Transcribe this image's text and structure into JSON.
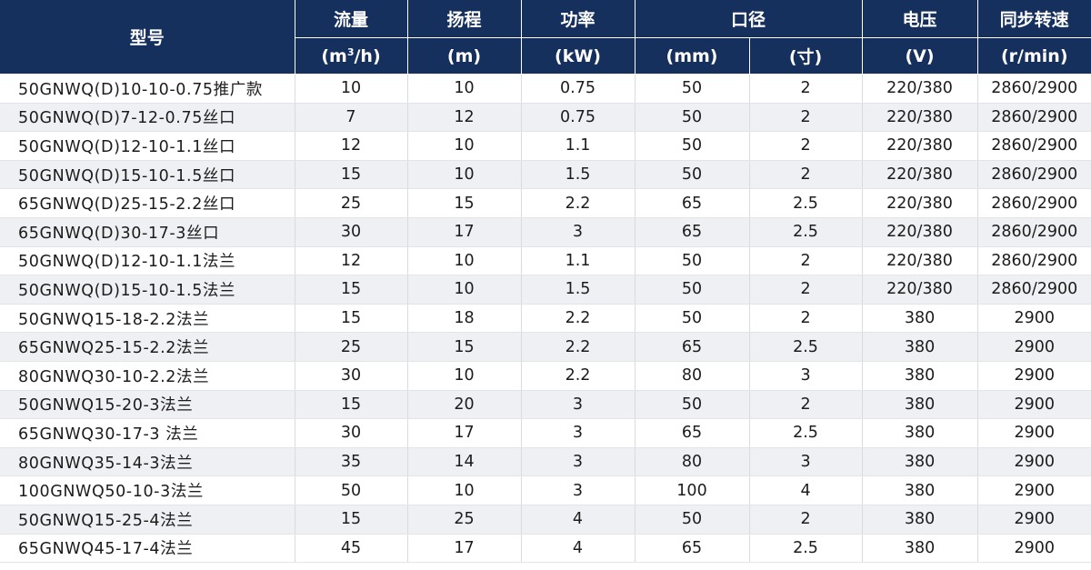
{
  "header": {
    "model": "型号",
    "flow": "流量",
    "head": "扬程",
    "power": "功率",
    "caliber": "口径",
    "voltage": "电压",
    "speed": "同步转速",
    "units": {
      "flow_prefix": "(m",
      "flow_sup": "3",
      "flow_suffix": "/h)",
      "head": "(m)",
      "power": "(kW)",
      "caliber_mm": "(mm)",
      "caliber_cun": "(寸)",
      "voltage": "(V)",
      "speed": "(r/min)"
    }
  },
  "rows": [
    [
      "50GNWQ(D)10-10-0.75推广款",
      "10",
      "10",
      "0.75",
      "50",
      "2",
      "220/380",
      "2860/2900"
    ],
    [
      "50GNWQ(D)7-12-0.75丝口",
      "7",
      "12",
      "0.75",
      "50",
      "2",
      "220/380",
      "2860/2900"
    ],
    [
      "50GNWQ(D)12-10-1.1丝口",
      "12",
      "10",
      "1.1",
      "50",
      "2",
      "220/380",
      "2860/2900"
    ],
    [
      "50GNWQ(D)15-10-1.5丝口",
      "15",
      "10",
      "1.5",
      "50",
      "2",
      "220/380",
      "2860/2900"
    ],
    [
      "65GNWQ(D)25-15-2.2丝口",
      "25",
      "15",
      "2.2",
      "65",
      "2.5",
      "220/380",
      "2860/2900"
    ],
    [
      "65GNWQ(D)30-17-3丝口",
      "30",
      "17",
      "3",
      "65",
      "2.5",
      "220/380",
      "2860/2900"
    ],
    [
      "50GNWQ(D)12-10-1.1法兰",
      "12",
      "10",
      "1.1",
      "50",
      "2",
      "220/380",
      "2860/2900"
    ],
    [
      "50GNWQ(D)15-10-1.5法兰",
      "15",
      "10",
      "1.5",
      "50",
      "2",
      "220/380",
      "2860/2900"
    ],
    [
      "50GNWQ15-18-2.2法兰",
      "15",
      "18",
      "2.2",
      "50",
      "2",
      "380",
      "2900"
    ],
    [
      "65GNWQ25-15-2.2法兰",
      "25",
      "15",
      "2.2",
      "65",
      "2.5",
      "380",
      "2900"
    ],
    [
      "80GNWQ30-10-2.2法兰",
      "30",
      "10",
      "2.2",
      "80",
      "3",
      "380",
      "2900"
    ],
    [
      "50GNWQ15-20-3法兰",
      "15",
      "20",
      "3",
      "50",
      "2",
      "380",
      "2900"
    ],
    [
      "65GNWQ30-17-3 法兰",
      "30",
      "17",
      "3",
      "65",
      "2.5",
      "380",
      "2900"
    ],
    [
      "80GNWQ35-14-3法兰",
      "35",
      "14",
      "3",
      "80",
      "3",
      "380",
      "2900"
    ],
    [
      "100GNWQ50-10-3法兰",
      "50",
      "10",
      "3",
      "100",
      "4",
      "380",
      "2900"
    ],
    [
      "50GNWQ15-25-4法兰",
      "15",
      "25",
      "4",
      "50",
      "2",
      "380",
      "2900"
    ],
    [
      "65GNWQ45-17-4法兰",
      "45",
      "17",
      "4",
      "65",
      "2.5",
      "380",
      "2900"
    ]
  ]
}
